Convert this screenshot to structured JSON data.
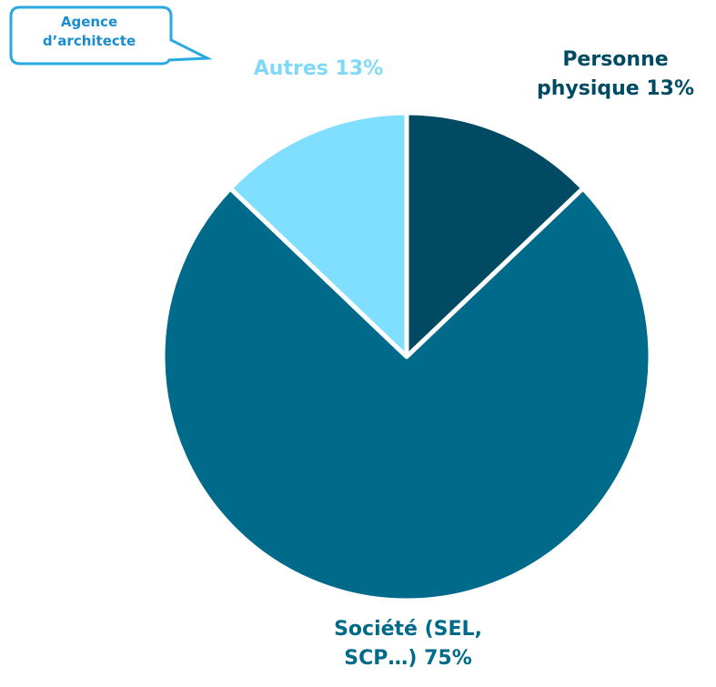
{
  "chart_data": {
    "type": "pie",
    "annotation": "Agence d’architecte",
    "categories": [
      "Personne physique",
      "Société (SEL, SCP…)",
      "Autres"
    ],
    "values": [
      13,
      75,
      13
    ],
    "value_labels": [
      "13%",
      "75%",
      "13%"
    ],
    "colors": [
      "#004a63",
      "#006a8b",
      "#80deff"
    ],
    "label_colors": [
      "#004a63",
      "#006a8b",
      "#7fd8f8"
    ],
    "start_angle": 90,
    "direction": "clockwise"
  }
}
